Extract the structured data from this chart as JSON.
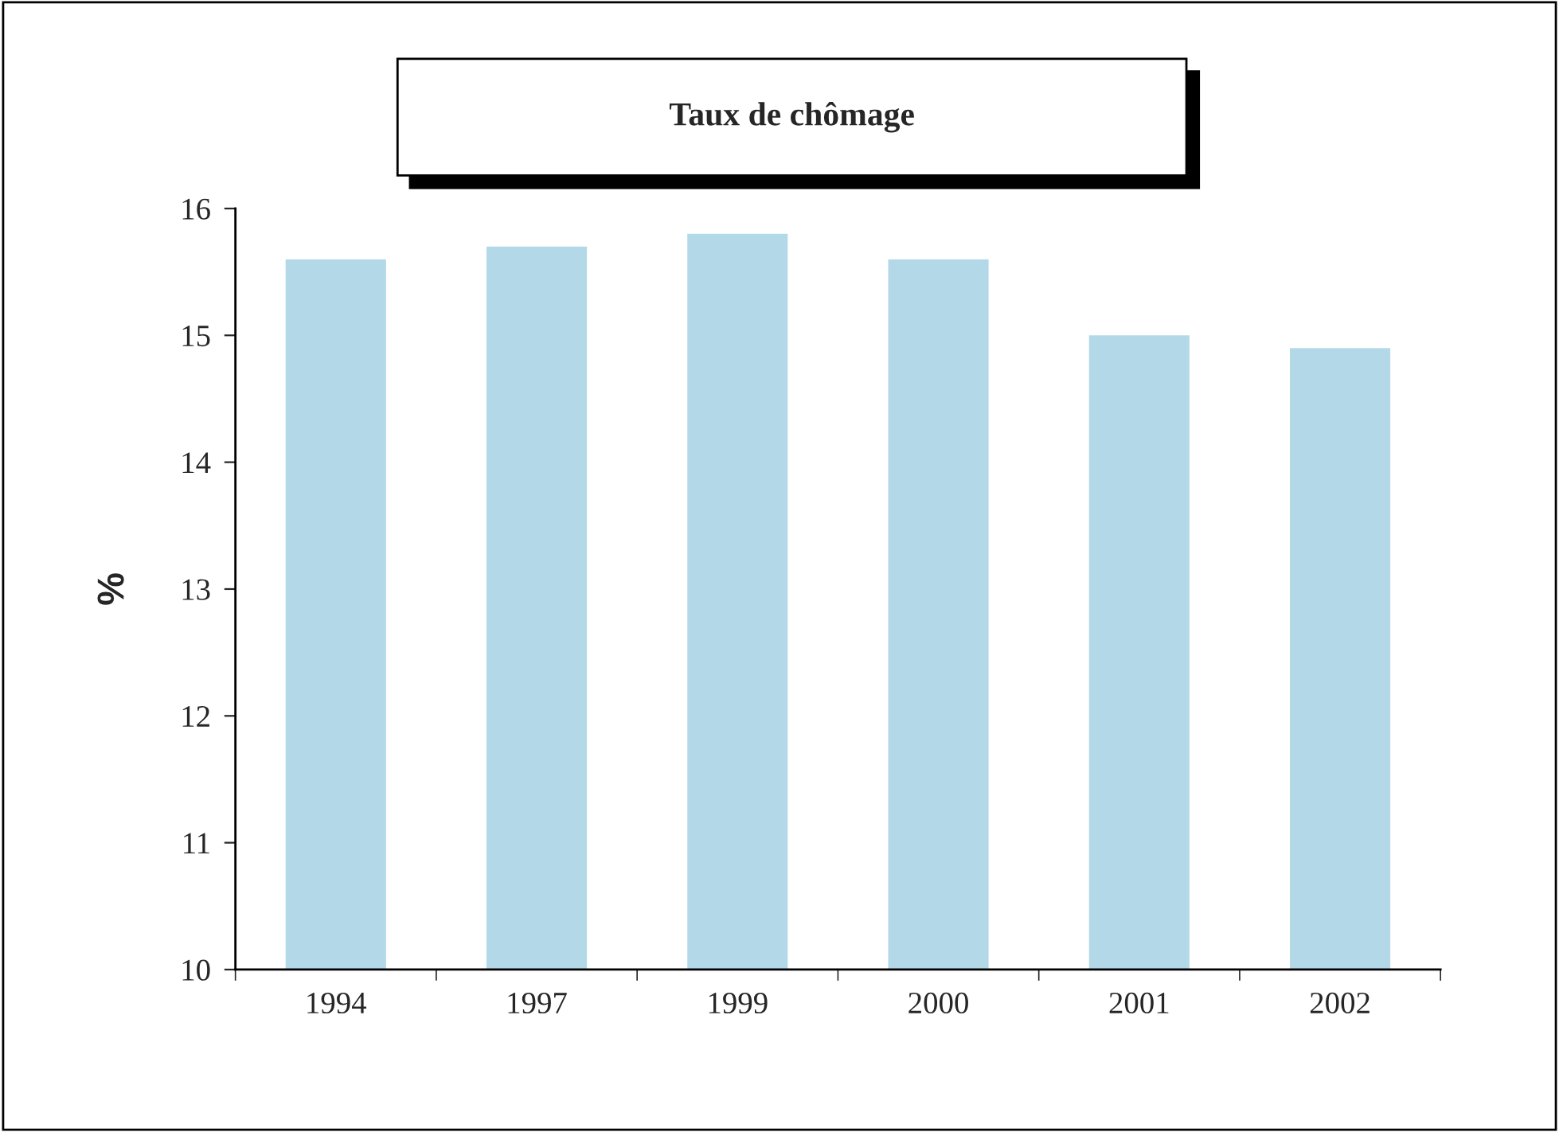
{
  "chart_data": {
    "type": "bar",
    "title": "Taux de chômage",
    "ylabel": "%",
    "categories": [
      "1994",
      "1997",
      "1999",
      "2000",
      "2001",
      "2002"
    ],
    "values": [
      15.6,
      15.7,
      15.8,
      15.6,
      15.0,
      14.9
    ],
    "color": "#b3d9e8",
    "ylim": [
      10,
      16
    ],
    "yticks": [
      10,
      11,
      12,
      13,
      14,
      15,
      16
    ],
    "grid": false,
    "legend": false
  }
}
